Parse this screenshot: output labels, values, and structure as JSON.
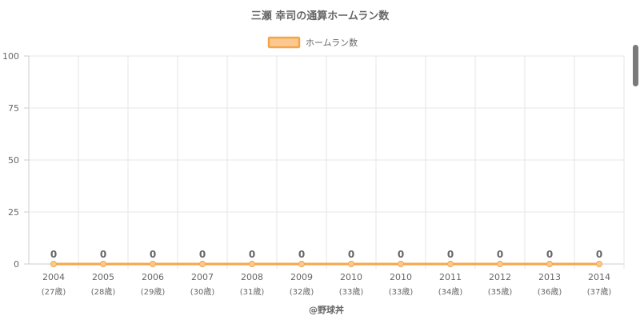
{
  "chart_data": {
    "type": "line",
    "title": "三瀬 幸司の通算ホームラン数",
    "categories": [
      "2004",
      "2005",
      "2006",
      "2007",
      "2008",
      "2009",
      "2010",
      "2010",
      "2011",
      "2012",
      "2013",
      "2014"
    ],
    "category_sublabels": [
      "(27歳)",
      "(28歳)",
      "(29歳)",
      "(30歳)",
      "(31歳)",
      "(32歳)",
      "(33歳)",
      "(33歳)",
      "(34歳)",
      "(35歳)",
      "(36歳)",
      "(37歳)"
    ],
    "series": [
      {
        "name": "ホームラン数",
        "values": [
          0,
          0,
          0,
          0,
          0,
          0,
          0,
          0,
          0,
          0,
          0,
          0
        ]
      }
    ],
    "ylim": [
      0,
      100
    ],
    "yticks": [
      0,
      25,
      50,
      75,
      100
    ],
    "grid": true,
    "legend_position": "top-center",
    "line_color": "#f5a54a",
    "fill_color": "#fbc98f",
    "grid_color": "#e5e5e5",
    "axis_color": "#cccccc"
  },
  "credit": "@野球丼"
}
